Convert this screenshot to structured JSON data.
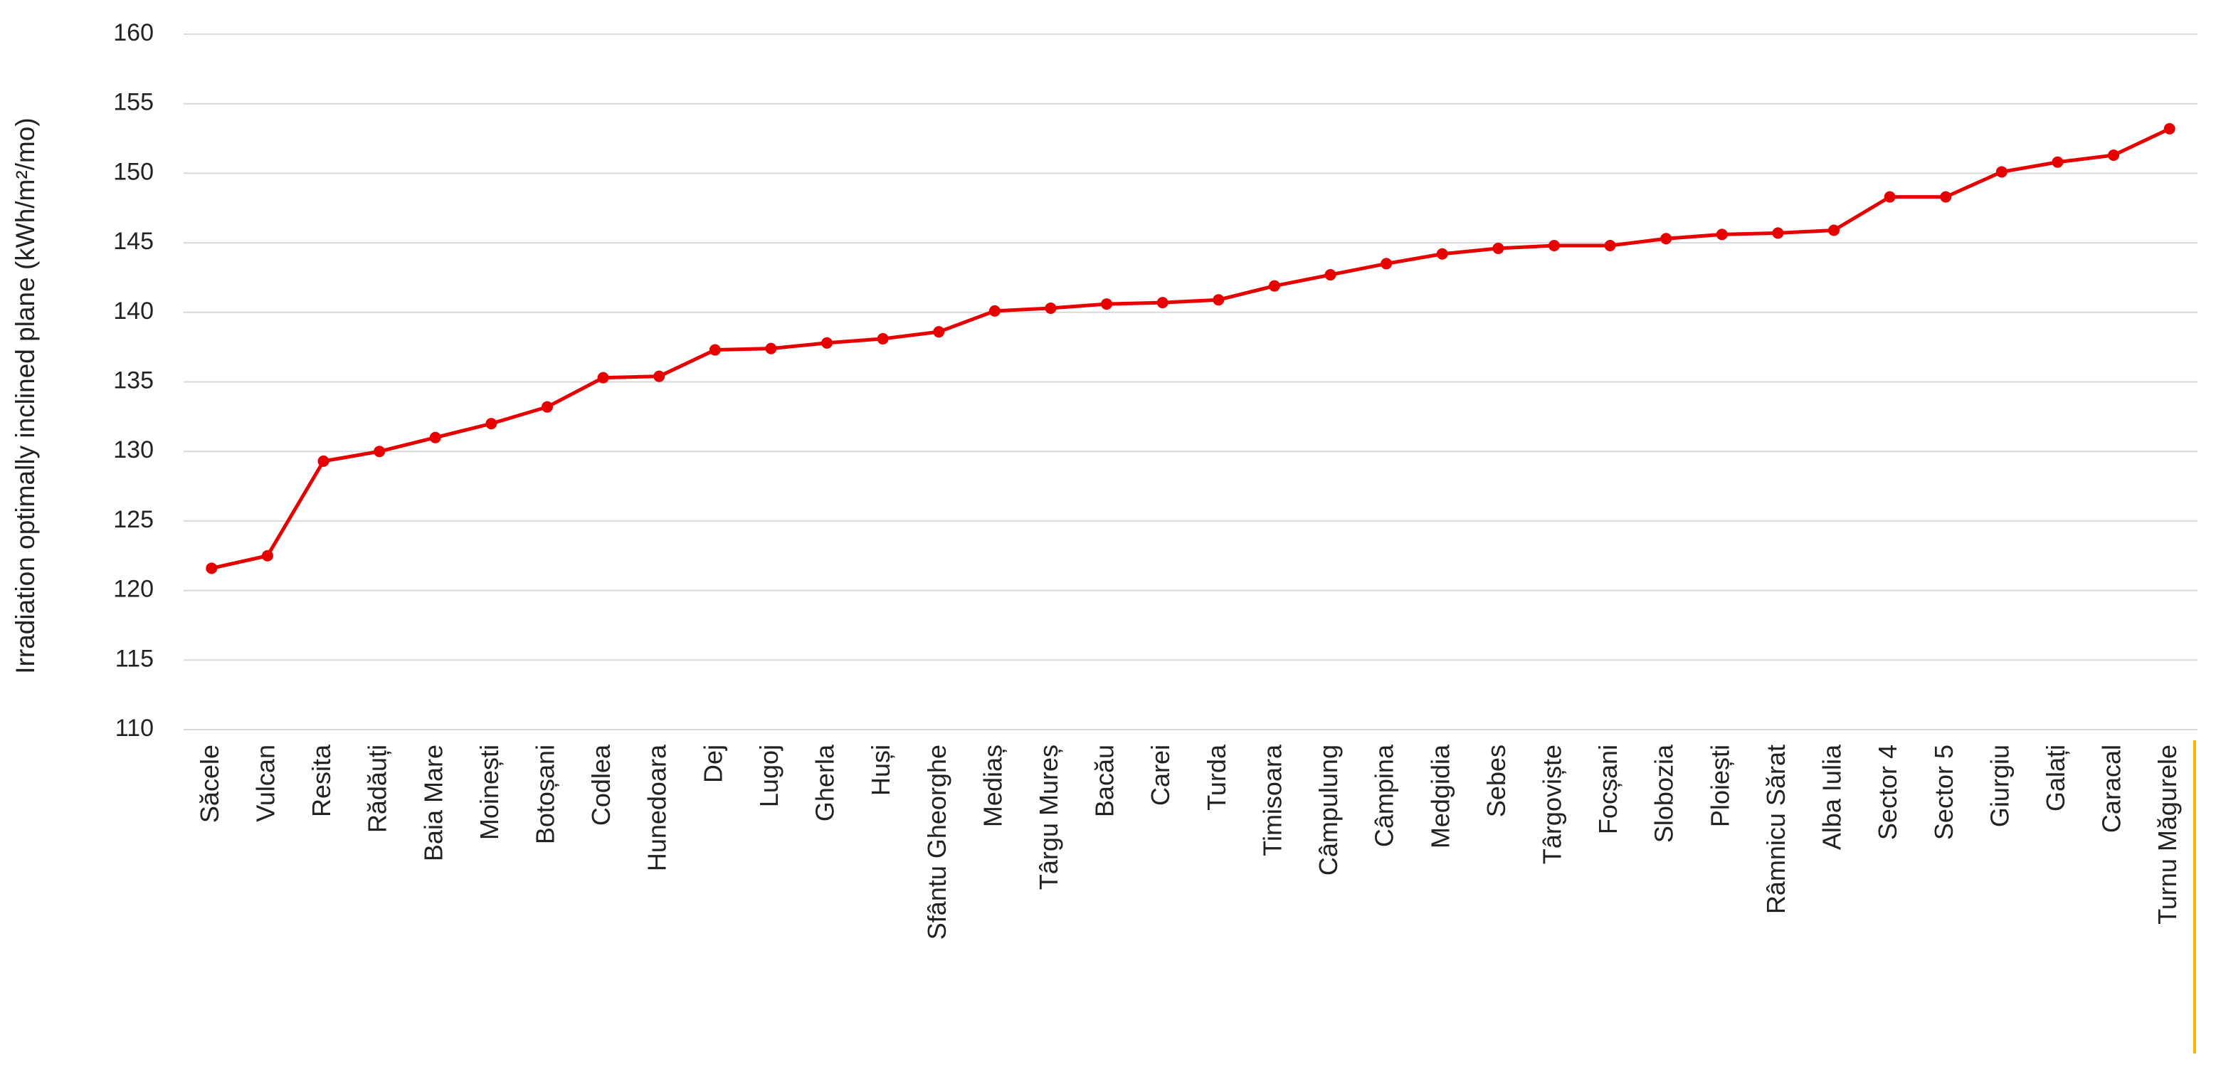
{
  "chart_data": {
    "type": "line",
    "y_label": "Irradiation optimally inclined plane (kWh/m²/mo)",
    "categories": [
      "Săcele",
      "Vulcan",
      "Resita",
      "Rădăuți",
      "Baia Mare",
      "Moinești",
      "Botoșani",
      "Codlea",
      "Hunedoara",
      "Dej",
      "Lugoj",
      "Gherla",
      "Huși",
      "Sfântu Gheorghe",
      "Mediaș",
      "Târgu Mureș",
      "Bacău",
      "Carei",
      "Turda",
      "Timisoara",
      "Câmpulung",
      "Câmpina",
      "Medgidia",
      "Sebes",
      "Târgoviște",
      "Focșani",
      "Slobozia",
      "Ploiești",
      "Râmnicu Sărat",
      "Alba Iulia",
      "Sector 4",
      "Sector 5",
      "Giurgiu",
      "Galați",
      "Caracal",
      "Turnu Măgurele"
    ],
    "values": [
      121.6,
      122.5,
      129.3,
      130.0,
      131.0,
      132.0,
      133.2,
      135.3,
      135.4,
      137.3,
      137.4,
      137.8,
      138.1,
      138.6,
      140.1,
      140.3,
      140.6,
      140.7,
      140.9,
      141.9,
      142.7,
      143.5,
      144.2,
      144.6,
      144.8,
      144.8,
      145.3,
      145.6,
      145.7,
      145.9,
      148.3,
      148.3,
      150.1,
      150.8,
      151.3,
      153.2
    ],
    "color": "#e60000",
    "ylim": [
      110,
      160
    ],
    "yticks": [
      110,
      115,
      120,
      125,
      130,
      135,
      140,
      145,
      150,
      155,
      160
    ],
    "grid": true
  }
}
